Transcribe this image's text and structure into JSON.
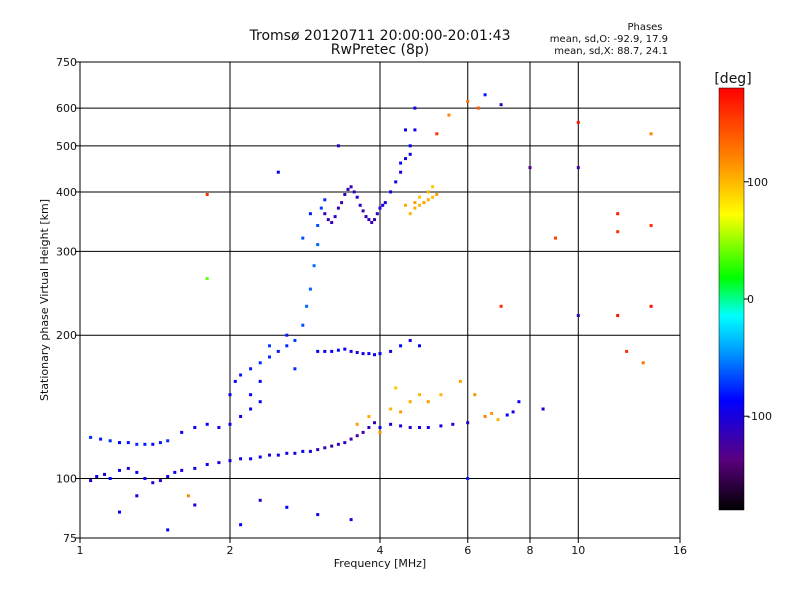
{
  "chart_data": {
    "type": "scatter",
    "title": "Tromsø 20120711 20:00:00-20:01:43",
    "subtitle": "RwPretec (8p)",
    "xlabel": "Frequency [MHz]",
    "ylabel": "Stationary phase Virtual Height [km]",
    "xscale": "log",
    "yscale": "log",
    "xlim": [
      1,
      16
    ],
    "ylim": [
      75,
      750
    ],
    "xticks": [
      1,
      2,
      4,
      6,
      8,
      10,
      16
    ],
    "xtick_labels": [
      "1",
      "2",
      "4",
      "6",
      "8",
      "10",
      "16"
    ],
    "xgrid": [
      2,
      4,
      6,
      8,
      10
    ],
    "yticks": [
      75,
      100,
      200,
      300,
      400,
      500,
      600,
      750
    ],
    "ytick_labels": [
      "75",
      "100",
      "200",
      "300",
      "400",
      "500",
      "600",
      "750"
    ],
    "ygrid": [
      100,
      200,
      300,
      400,
      500,
      600
    ],
    "grid": true,
    "stats": {
      "header": "Phases",
      "line_o": "mean, sd,O: -92.9, 17.9",
      "line_x": "mean, sd,X:  88.7, 24.1"
    },
    "colorbar": {
      "label": "[deg]",
      "range": [
        -180,
        180
      ],
      "ticks": [
        100,
        0,
        -100
      ],
      "tick_labels": [
        "100",
        "0",
        "-100"
      ],
      "colormap": "rainbow (black-purple-blue-cyan-green-yellow-orange-red)"
    },
    "series": [
      {
        "trace": "low-layer-lower",
        "points": [
          [
            1.05,
            99,
            -100
          ],
          [
            1.08,
            101,
            -95
          ],
          [
            1.12,
            102,
            -100
          ],
          [
            1.15,
            100,
            -90
          ],
          [
            1.2,
            104,
            -95
          ],
          [
            1.25,
            105,
            -100
          ],
          [
            1.3,
            103,
            -90
          ],
          [
            1.35,
            100,
            -95
          ],
          [
            1.4,
            98,
            -100
          ],
          [
            1.45,
            99,
            -105
          ],
          [
            1.5,
            101,
            -95
          ],
          [
            1.55,
            103,
            -90
          ],
          [
            1.6,
            104,
            -100
          ],
          [
            1.7,
            105,
            -95
          ],
          [
            1.8,
            107,
            -90
          ],
          [
            1.9,
            108,
            -100
          ],
          [
            2.0,
            109,
            -95
          ],
          [
            2.1,
            110,
            -100
          ],
          [
            2.2,
            110,
            -90
          ],
          [
            2.3,
            111,
            -95
          ],
          [
            2.4,
            112,
            -100
          ],
          [
            2.5,
            112,
            -90
          ],
          [
            2.6,
            113,
            -95
          ],
          [
            2.7,
            113,
            -100
          ],
          [
            2.8,
            114,
            -90
          ],
          [
            2.9,
            114,
            -95
          ],
          [
            3.0,
            115,
            -110
          ],
          [
            3.1,
            116,
            -115
          ],
          [
            3.2,
            117,
            -120
          ],
          [
            3.3,
            118,
            -115
          ],
          [
            3.4,
            119,
            -110
          ],
          [
            3.5,
            121,
            -120
          ],
          [
            3.6,
            123,
            -125
          ],
          [
            3.7,
            125,
            -120
          ],
          [
            3.8,
            128,
            -115
          ],
          [
            3.9,
            131,
            -110
          ]
        ]
      },
      {
        "trace": "low-layer-upper",
        "points": [
          [
            1.05,
            122,
            -75
          ],
          [
            1.1,
            121,
            -80
          ],
          [
            1.15,
            120,
            -75
          ],
          [
            1.2,
            119,
            -85
          ],
          [
            1.25,
            119,
            -80
          ],
          [
            1.3,
            118,
            -75
          ],
          [
            1.35,
            118,
            -80
          ],
          [
            1.4,
            118,
            -85
          ],
          [
            1.45,
            119,
            -80
          ],
          [
            1.5,
            120,
            -75
          ],
          [
            1.6,
            125,
            -90
          ],
          [
            1.7,
            128,
            -95
          ],
          [
            1.8,
            130,
            -90
          ],
          [
            1.9,
            128,
            -95
          ],
          [
            2.0,
            130,
            -90
          ],
          [
            2.1,
            135,
            -95
          ],
          [
            2.2,
            140,
            -90
          ],
          [
            2.3,
            145,
            -85
          ]
        ]
      },
      {
        "trace": "rising-branch",
        "points": [
          [
            2.0,
            150,
            -90
          ],
          [
            2.05,
            160,
            -85
          ],
          [
            2.1,
            165,
            -80
          ],
          [
            2.2,
            170,
            -80
          ],
          [
            2.3,
            175,
            -75
          ],
          [
            2.4,
            180,
            -75
          ],
          [
            2.5,
            185,
            -80
          ],
          [
            2.6,
            190,
            -75
          ],
          [
            2.7,
            195,
            -70
          ],
          [
            2.8,
            210,
            -65
          ],
          [
            2.85,
            230,
            -60
          ],
          [
            2.9,
            250,
            -60
          ],
          [
            2.95,
            280,
            -55
          ],
          [
            3.0,
            310,
            -60
          ],
          [
            3.0,
            340,
            -65
          ],
          [
            3.05,
            370,
            -70
          ],
          [
            3.1,
            385,
            -75
          ],
          [
            2.9,
            360,
            -80
          ],
          [
            2.8,
            320,
            -65
          ],
          [
            2.6,
            200,
            -80
          ],
          [
            2.4,
            190,
            -70
          ],
          [
            2.3,
            160,
            -85
          ],
          [
            2.2,
            150,
            -90
          ],
          [
            2.7,
            170,
            -75
          ]
        ]
      },
      {
        "trace": "f-layer-cluster",
        "points": [
          [
            3.1,
            360,
            -110
          ],
          [
            3.15,
            350,
            -115
          ],
          [
            3.2,
            345,
            -120
          ],
          [
            3.25,
            355,
            -110
          ],
          [
            3.3,
            370,
            -115
          ],
          [
            3.35,
            380,
            -120
          ],
          [
            3.4,
            395,
            -115
          ],
          [
            3.45,
            405,
            -110
          ],
          [
            3.5,
            410,
            -120
          ],
          [
            3.55,
            400,
            -115
          ],
          [
            3.6,
            390,
            -110
          ],
          [
            3.65,
            375,
            -115
          ],
          [
            3.7,
            365,
            -120
          ],
          [
            3.75,
            355,
            -115
          ],
          [
            3.8,
            350,
            -110
          ],
          [
            3.85,
            345,
            -120
          ],
          [
            3.9,
            350,
            -115
          ],
          [
            3.95,
            360,
            -110
          ],
          [
            4.0,
            370,
            -105
          ],
          [
            4.05,
            375,
            -100
          ],
          [
            4.1,
            380,
            -95
          ]
        ]
      },
      {
        "trace": "f-layer-upper",
        "points": [
          [
            4.2,
            400,
            -90
          ],
          [
            4.3,
            420,
            -95
          ],
          [
            4.4,
            440,
            -100
          ],
          [
            4.5,
            470,
            -95
          ],
          [
            4.6,
            500,
            -90
          ],
          [
            4.7,
            540,
            -100
          ],
          [
            4.4,
            460,
            -85
          ],
          [
            4.6,
            480,
            -95
          ]
        ]
      },
      {
        "trace": "x-trace",
        "points": [
          [
            4.6,
            360,
            100
          ],
          [
            4.7,
            370,
            105
          ],
          [
            4.8,
            375,
            100
          ],
          [
            4.9,
            380,
            110
          ],
          [
            5.0,
            385,
            105
          ],
          [
            5.1,
            390,
            100
          ],
          [
            5.2,
            395,
            110
          ],
          [
            4.8,
            390,
            95
          ],
          [
            5.0,
            400,
            100
          ],
          [
            4.7,
            380,
            110
          ],
          [
            5.1,
            410,
            95
          ],
          [
            4.5,
            375,
            105
          ]
        ]
      },
      {
        "trace": "mid-layer",
        "points": [
          [
            3.0,
            185,
            -90
          ],
          [
            3.1,
            185,
            -95
          ],
          [
            3.2,
            185,
            -90
          ],
          [
            3.3,
            186,
            -85
          ],
          [
            3.4,
            187,
            -90
          ],
          [
            3.5,
            185,
            -95
          ],
          [
            3.6,
            184,
            -100
          ],
          [
            3.7,
            183,
            -95
          ],
          [
            3.8,
            183,
            -90
          ],
          [
            3.9,
            182,
            -95
          ],
          [
            4.0,
            183,
            -90
          ],
          [
            4.2,
            185,
            -95
          ],
          [
            4.4,
            190,
            -90
          ],
          [
            4.6,
            195,
            -95
          ],
          [
            4.8,
            190,
            -90
          ]
        ]
      },
      {
        "trace": "high-freq-low",
        "points": [
          [
            4.0,
            128,
            -100
          ],
          [
            4.2,
            130,
            -95
          ],
          [
            4.4,
            129,
            -100
          ],
          [
            4.6,
            128,
            -105
          ],
          [
            4.8,
            128,
            -100
          ],
          [
            5.0,
            128,
            -100
          ],
          [
            5.3,
            129,
            -95
          ],
          [
            5.6,
            130,
            -100
          ],
          [
            6.0,
            131,
            -105
          ]
        ]
      },
      {
        "trace": "yellow-mid",
        "points": [
          [
            3.6,
            130,
            110
          ],
          [
            3.8,
            135,
            105
          ],
          [
            4.0,
            125,
            115
          ],
          [
            4.2,
            140,
            100
          ],
          [
            4.4,
            138,
            110
          ],
          [
            4.6,
            145,
            105
          ],
          [
            4.8,
            150,
            100
          ],
          [
            5.0,
            145,
            110
          ],
          [
            5.3,
            150,
            100
          ],
          [
            4.3,
            155,
            95
          ]
        ]
      },
      {
        "trace": "scattered",
        "points": [
          [
            6.5,
            135,
            120
          ],
          [
            6.7,
            137,
            110
          ],
          [
            6.9,
            133,
            100
          ],
          [
            7.2,
            136,
            -90
          ],
          [
            7.4,
            138,
            -100
          ],
          [
            6.2,
            150,
            115
          ],
          [
            7.6,
            145,
            -95
          ],
          [
            5.8,
            160,
            110
          ],
          [
            7.0,
            230,
            160
          ],
          [
            10.0,
            220,
            -110
          ],
          [
            12.0,
            220,
            170
          ],
          [
            14.0,
            230,
            175
          ],
          [
            10.0,
            560,
            170
          ],
          [
            10.0,
            450,
            -120
          ],
          [
            7.0,
            610,
            -110
          ],
          [
            8.0,
            450,
            -130
          ],
          [
            9.0,
            320,
            150
          ],
          [
            12.0,
            360,
            170
          ],
          [
            12.0,
            330,
            160
          ],
          [
            14.0,
            340,
            160
          ],
          [
            14.0,
            530,
            120
          ],
          [
            12.5,
            185,
            160
          ],
          [
            13.5,
            175,
            130
          ],
          [
            6.0,
            100,
            -80
          ],
          [
            1.8,
            395,
            160
          ],
          [
            1.8,
            263,
            40
          ],
          [
            2.5,
            440,
            -90
          ],
          [
            1.3,
            92,
            -95
          ],
          [
            1.5,
            78,
            -90
          ],
          [
            1.7,
            88,
            -100
          ],
          [
            2.3,
            90,
            -110
          ],
          [
            2.6,
            87,
            -90
          ],
          [
            3.0,
            84,
            -95
          ],
          [
            1.2,
            85,
            -90
          ],
          [
            3.5,
            82,
            -100
          ],
          [
            5.5,
            580,
            120
          ],
          [
            6.0,
            620,
            130
          ],
          [
            6.5,
            640,
            -80
          ],
          [
            5.2,
            530,
            160
          ],
          [
            1.65,
            92,
            120
          ],
          [
            2.1,
            80,
            -90
          ],
          [
            8.5,
            140,
            -100
          ],
          [
            6.3,
            600,
            140
          ],
          [
            4.7,
            600,
            -95
          ],
          [
            4.5,
            540,
            -100
          ],
          [
            3.3,
            500,
            -110
          ]
        ]
      }
    ]
  }
}
